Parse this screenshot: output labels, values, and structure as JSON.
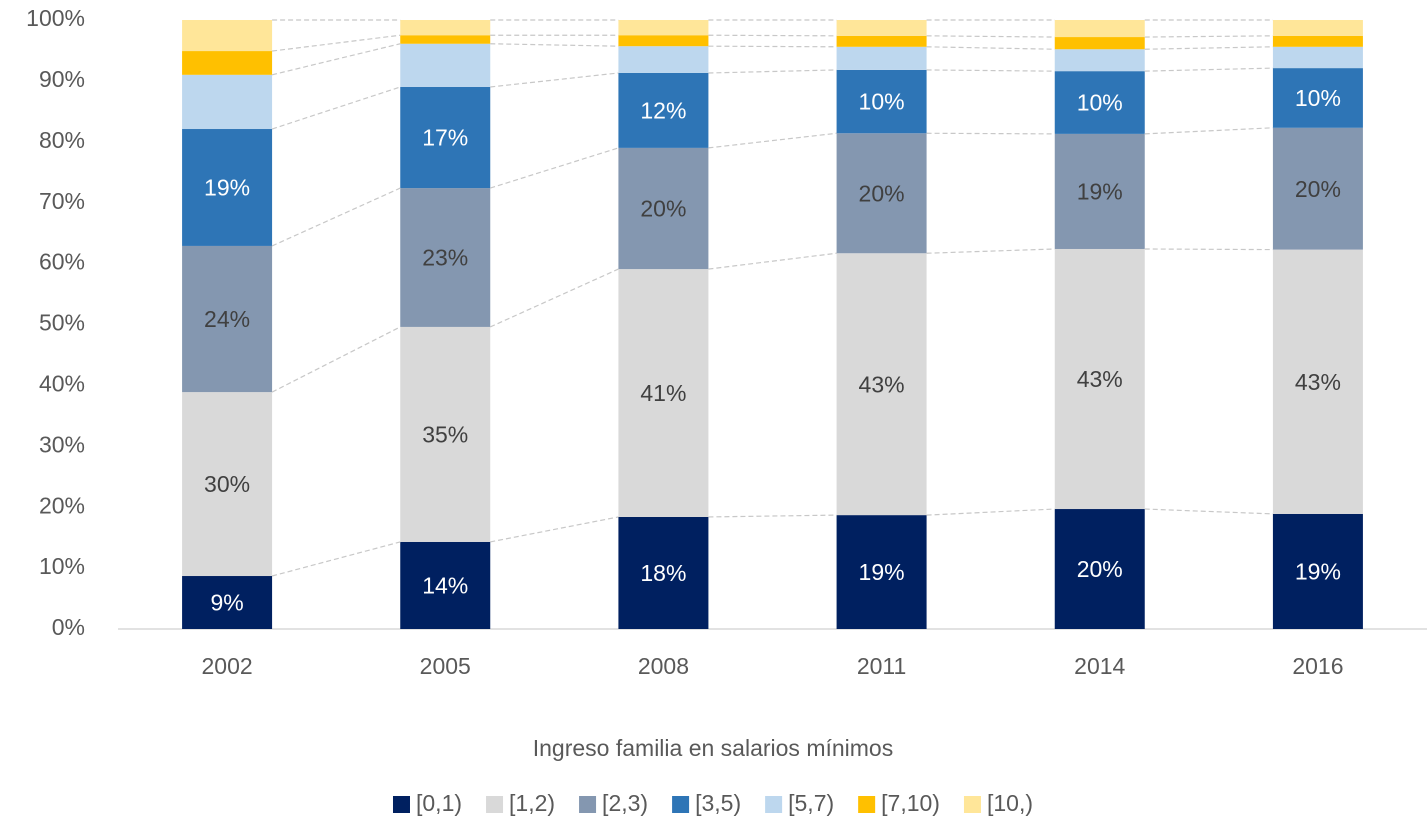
{
  "chart_data": {
    "type": "stacked_bar",
    "x_label": "Ingreso familia en salarios mínimos",
    "categories": [
      "2002",
      "2005",
      "2008",
      "2011",
      "2014",
      "2016"
    ],
    "series": [
      {
        "name": "[0,1)",
        "color": "#002060",
        "values": [
          8.7,
          14.3,
          18.4,
          18.7,
          19.7,
          18.9
        ],
        "value_labels": [
          "9%",
          "14%",
          "18%",
          "19%",
          "20%",
          "19%"
        ]
      },
      {
        "name": "[1,2)",
        "color": "#d9d9d9",
        "values": [
          30.2,
          35.3,
          40.7,
          43.0,
          42.7,
          43.4
        ],
        "value_labels": [
          "30%",
          "35%",
          "41%",
          "43%",
          "43%",
          "43%"
        ]
      },
      {
        "name": "[2,3)",
        "color": "#8497b0",
        "values": [
          24.0,
          22.8,
          19.9,
          19.7,
          18.9,
          20.0
        ],
        "value_labels": [
          "24%",
          "23%",
          "20%",
          "20%",
          "19%",
          "20%"
        ]
      },
      {
        "name": "[3,5)",
        "color": "#2e75b6",
        "values": [
          19.2,
          16.6,
          12.3,
          10.4,
          10.3,
          9.8
        ],
        "value_labels": [
          "19%",
          "17%",
          "12%",
          "10%",
          "10%",
          "10%"
        ]
      },
      {
        "name": "[5,7)",
        "color": "#bdd7ee",
        "values": [
          8.9,
          7.1,
          4.4,
          3.8,
          3.6,
          3.5
        ]
      },
      {
        "name": "[7,10)",
        "color": "#ffc000",
        "values": [
          3.9,
          1.4,
          1.8,
          1.8,
          2.0,
          1.8
        ]
      },
      {
        "name": "[10,)",
        "color": "#ffe699",
        "values": [
          5.1,
          2.5,
          2.5,
          2.6,
          2.8,
          2.6
        ]
      }
    ],
    "ylim": [
      0,
      100
    ],
    "yticks": [
      {
        "value": 0,
        "label": "0%"
      },
      {
        "value": 10,
        "label": "10%"
      },
      {
        "value": 20,
        "label": "20%"
      },
      {
        "value": 30,
        "label": "30%"
      },
      {
        "value": 40,
        "label": "40%"
      },
      {
        "value": 50,
        "label": "50%"
      },
      {
        "value": 60,
        "label": "60%"
      },
      {
        "value": 70,
        "label": "70%"
      },
      {
        "value": 80,
        "label": "80%"
      },
      {
        "value": 90,
        "label": "90%"
      },
      {
        "value": 100,
        "label": "100%"
      }
    ],
    "grid": false,
    "legend": "bottom"
  }
}
